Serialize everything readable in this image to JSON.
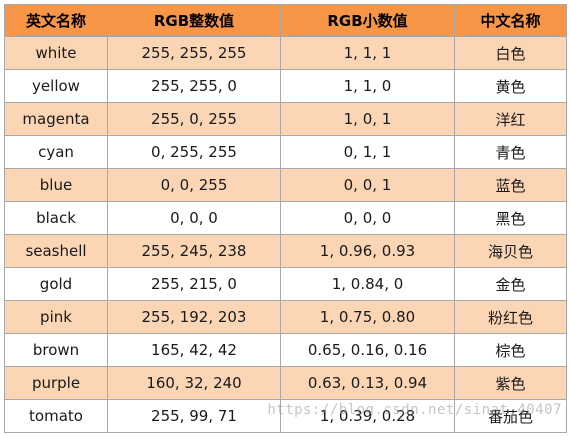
{
  "table": {
    "headers": [
      "英文名称",
      "RGB整数值",
      "RGB小数值",
      "中文名称"
    ],
    "rows": [
      {
        "en": "white",
        "rgb_int": "255, 255, 255",
        "rgb_dec": "1, 1, 1",
        "zh": "白色"
      },
      {
        "en": "yellow",
        "rgb_int": "255, 255, 0",
        "rgb_dec": "1, 1, 0",
        "zh": "黄色"
      },
      {
        "en": "magenta",
        "rgb_int": "255, 0, 255",
        "rgb_dec": "1, 0, 1",
        "zh": "洋红"
      },
      {
        "en": "cyan",
        "rgb_int": "0, 255, 255",
        "rgb_dec": "0, 1, 1",
        "zh": "青色"
      },
      {
        "en": "blue",
        "rgb_int": "0, 0, 255",
        "rgb_dec": "0, 0, 1",
        "zh": "蓝色"
      },
      {
        "en": "black",
        "rgb_int": "0, 0, 0",
        "rgb_dec": "0, 0, 0",
        "zh": "黑色"
      },
      {
        "en": "seashell",
        "rgb_int": "255, 245, 238",
        "rgb_dec": "1, 0.96, 0.93",
        "zh": "海贝色"
      },
      {
        "en": "gold",
        "rgb_int": "255, 215, 0",
        "rgb_dec": "1, 0.84, 0",
        "zh": "金色"
      },
      {
        "en": "pink",
        "rgb_int": "255, 192, 203",
        "rgb_dec": "1, 0.75, 0.80",
        "zh": "粉红色"
      },
      {
        "en": "brown",
        "rgb_int": "165, 42, 42",
        "rgb_dec": "0.65, 0.16, 0.16",
        "zh": "棕色"
      },
      {
        "en": "purple",
        "rgb_int": "160, 32, 240",
        "rgb_dec": "0.63, 0.13, 0.94",
        "zh": "紫色"
      },
      {
        "en": "tomato",
        "rgb_int": "255, 99, 71",
        "rgb_dec": "1, 0.39, 0.28",
        "zh": "番茄色"
      }
    ]
  },
  "watermark": "https://blog.csdn.net/sinat_40407",
  "colors": {
    "header_bg": "#f79646",
    "band_bg": "#fcd5b4",
    "plain_bg": "#ffffff",
    "border": "#a8a8a8"
  }
}
